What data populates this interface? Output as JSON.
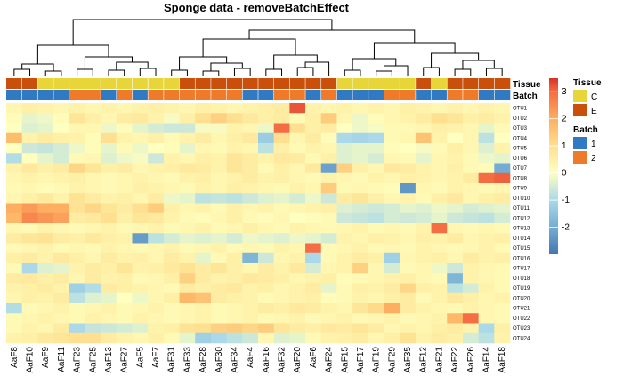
{
  "chart_data": {
    "type": "heatmap",
    "title": "Sponge data - removeBatchEffect",
    "columns": [
      "AaF8",
      "AaF10",
      "AaF9",
      "AaF11",
      "AaF23",
      "AaF25",
      "AaF13",
      "AaF27",
      "AaF5",
      "AaF7",
      "AaF31",
      "AaF33",
      "AaF28",
      "AaF30",
      "AaF34",
      "AaF4",
      "AaF16",
      "AaF32",
      "AaF20",
      "AaF6",
      "AaF24",
      "AaF15",
      "AaF17",
      "AaF19",
      "AaF29",
      "AaF35",
      "AaF12",
      "AaF21",
      "AaF22",
      "AaF26",
      "AaF14",
      "AaF18"
    ],
    "rows": [
      "OTU1",
      "OTU2",
      "OTU3",
      "OTU4",
      "OTU5",
      "OTU6",
      "OTU7",
      "OTU8",
      "OTU9",
      "OTU10",
      "OTU11",
      "OTU12",
      "OTU13",
      "OTU14",
      "OTU15",
      "OTU16",
      "OTU17",
      "OTU18",
      "OTU19",
      "OTU20",
      "OTU21",
      "OTU22",
      "OTU23",
      "OTU24"
    ],
    "annotations": {
      "Tissue": {
        "label": "Tissue",
        "levels": [
          "C",
          "E"
        ],
        "colors": {
          "C": "#e8d53a",
          "E": "#c94f0b"
        },
        "values": [
          "E",
          "E",
          "C",
          "C",
          "C",
          "C",
          "C",
          "C",
          "C",
          "C",
          "C",
          "E",
          "E",
          "E",
          "E",
          "E",
          "E",
          "E",
          "E",
          "E",
          "E",
          "C",
          "C",
          "C",
          "C",
          "C",
          "E",
          "C",
          "E",
          "E",
          "E",
          "E"
        ]
      },
      "Batch": {
        "label": "Batch",
        "levels": [
          "1",
          "2"
        ],
        "colors": {
          "1": "#2f7ac2",
          "2": "#ef7a2a"
        },
        "values": [
          "1",
          "1",
          "1",
          "1",
          "2",
          "2",
          "1",
          "2",
          "1",
          "2",
          "2",
          "2",
          "2",
          "2",
          "2",
          "1",
          "1",
          "2",
          "2",
          "1",
          "2",
          "1",
          "1",
          "1",
          "2",
          "2",
          "1",
          "1",
          "2",
          "2",
          "1",
          "1"
        ]
      }
    },
    "legend": {
      "ticks": [
        3,
        2,
        1,
        0,
        -1,
        -2
      ],
      "range": [
        -3,
        3.5
      ]
    },
    "values": [
      [
        0.3,
        0.5,
        0.4,
        0.3,
        0.4,
        0.3,
        0.4,
        0.3,
        0.4,
        0.5,
        0.4,
        0.3,
        0.5,
        0.4,
        0.3,
        0.4,
        0.5,
        0.6,
        3.2,
        0.4,
        0.3,
        0.4,
        0.3,
        0.4,
        0.3,
        0.5,
        0.4,
        0.3,
        0.4,
        0.3,
        0.4,
        0.3
      ],
      [
        0.1,
        -0.3,
        -0.2,
        0.1,
        0.8,
        0.5,
        0.3,
        0.6,
        0.7,
        0.4,
        -0.1,
        0.5,
        1.0,
        1.3,
        1.0,
        0.7,
        0.5,
        0.6,
        0.2,
        0.5,
        1.4,
        0.3,
        -0.2,
        0.1,
        0.3,
        0.4,
        0.6,
        1.0,
        0.8,
        0.5,
        0.6,
        0.4
      ],
      [
        0.0,
        -0.4,
        -0.3,
        0.0,
        0.3,
        0.3,
        -0.2,
        0.1,
        -0.3,
        -0.5,
        -0.6,
        -0.6,
        -0.1,
        -0.1,
        0.4,
        0.3,
        -0.2,
        3.0,
        1.0,
        0.5,
        0.6,
        0.0,
        -0.2,
        -0.1,
        0.2,
        0.2,
        0.3,
        0.5,
        0.4,
        0.3,
        -0.3,
        0.2
      ],
      [
        1.7,
        0.4,
        0.6,
        0.5,
        0.4,
        0.1,
        1.0,
        0.4,
        0.3,
        0.5,
        0.2,
        0.4,
        0.6,
        0.3,
        0.5,
        0.7,
        -1.3,
        1.0,
        0.3,
        0.6,
        0.1,
        -1.0,
        -1.1,
        -1.0,
        0.2,
        0.3,
        1.6,
        0.4,
        0.0,
        0.3,
        -0.8,
        0.0
      ],
      [
        0.0,
        -0.6,
        -0.7,
        -0.5,
        -0.2,
        0.1,
        -0.3,
        0.2,
        -0.2,
        0.0,
        0.1,
        -0.3,
        0.3,
        0.2,
        0.4,
        0.3,
        -0.8,
        0.5,
        0.2,
        0.4,
        0.3,
        -0.4,
        -0.3,
        -0.3,
        0.1,
        0.0,
        -0.1,
        0.2,
        0.5,
        0.3,
        -0.4,
        0.4
      ],
      [
        -0.9,
        0.0,
        -0.3,
        -0.5,
        0.2,
        0.3,
        -0.4,
        -0.2,
        -0.1,
        -0.6,
        0.4,
        0.3,
        0.5,
        0.4,
        0.8,
        0.6,
        0.4,
        0.7,
        0.6,
        0.2,
        0.5,
        -0.4,
        -0.3,
        -0.5,
        0.3,
        0.2,
        -0.3,
        0.3,
        0.4,
        0.2,
        -0.2,
        -0.3
      ],
      [
        0.4,
        0.7,
        0.5,
        0.6,
        1.2,
        0.8,
        0.5,
        0.6,
        0.3,
        0.4,
        0.5,
        0.7,
        0.6,
        0.4,
        0.8,
        0.6,
        0.2,
        0.5,
        0.3,
        0.7,
        -2.2,
        1.3,
        0.5,
        0.3,
        0.7,
        0.6,
        0.4,
        0.3,
        0.5,
        0.2,
        0.1,
        -2.0
      ],
      [
        0.3,
        0.4,
        0.3,
        0.4,
        0.5,
        0.3,
        0.2,
        0.3,
        0.4,
        0.3,
        0.2,
        0.4,
        0.5,
        0.3,
        0.4,
        0.6,
        0.4,
        0.5,
        0.3,
        0.2,
        0.4,
        0.3,
        0.2,
        0.4,
        0.3,
        0.5,
        0.4,
        0.3,
        0.4,
        0.6,
        3.0,
        3.1
      ],
      [
        0.2,
        0.3,
        0.1,
        0.2,
        0.4,
        0.3,
        0.2,
        0.3,
        0.5,
        0.4,
        0.3,
        0.2,
        0.4,
        0.3,
        0.5,
        0.4,
        0.3,
        0.2,
        0.4,
        0.3,
        1.4,
        0.2,
        0.3,
        0.2,
        0.1,
        -2.4,
        0.3,
        0.2,
        0.4,
        0.3,
        0.2,
        0.3
      ],
      [
        0.3,
        0.5,
        0.7,
        0.4,
        0.9,
        0.6,
        0.4,
        0.5,
        0.3,
        0.6,
        -0.2,
        -0.3,
        -0.8,
        -0.7,
        -0.8,
        -0.6,
        -0.4,
        -0.3,
        -0.5,
        -0.2,
        -0.6,
        0.6,
        0.8,
        0.5,
        0.3,
        0.4,
        0.2,
        0.5,
        0.7,
        0.3,
        0.5,
        0.6
      ],
      [
        2.0,
        2.3,
        2.0,
        2.0,
        0.9,
        1.2,
        0.8,
        0.6,
        1.0,
        1.4,
        0.5,
        0.3,
        0.4,
        0.2,
        0.5,
        0.3,
        0.4,
        0.2,
        0.3,
        0.4,
        0.5,
        -0.4,
        -0.5,
        -0.6,
        -0.5,
        -0.3,
        -0.4,
        -0.2,
        -0.3,
        -0.5,
        -0.4,
        -0.3
      ],
      [
        1.8,
        2.6,
        2.4,
        2.2,
        0.6,
        0.7,
        1.0,
        0.5,
        0.8,
        0.7,
        0.4,
        0.2,
        0.1,
        0.3,
        0.5,
        0.2,
        0.1,
        0.3,
        0.0,
        0.1,
        0.2,
        -0.6,
        -0.7,
        -0.8,
        -0.5,
        -0.6,
        -0.5,
        -0.3,
        -0.6,
        -0.7,
        -0.8,
        -0.5
      ],
      [
        0.3,
        0.2,
        0.4,
        0.3,
        0.2,
        0.3,
        0.4,
        0.2,
        0.3,
        0.4,
        0.2,
        0.3,
        0.4,
        0.2,
        0.3,
        0.5,
        0.3,
        0.2,
        0.4,
        0.3,
        0.2,
        0.3,
        0.4,
        0.2,
        0.3,
        0.2,
        0.4,
        3.0,
        0.3,
        0.2,
        0.3,
        0.2
      ],
      [
        0.6,
        0.8,
        0.9,
        0.6,
        0.5,
        0.7,
        0.5,
        0.4,
        -2.3,
        -0.8,
        -0.5,
        -0.3,
        -0.4,
        -0.3,
        -0.5,
        -0.2,
        -0.3,
        -0.4,
        -0.2,
        -0.3,
        -0.5,
        0.4,
        0.3,
        0.5,
        0.4,
        0.3,
        0.5,
        0.4,
        0.6,
        0.3,
        0.4,
        0.5
      ],
      [
        0.2,
        0.3,
        0.4,
        0.2,
        0.3,
        0.2,
        0.4,
        0.3,
        0.2,
        0.3,
        0.4,
        0.2,
        0.3,
        0.4,
        0.2,
        0.3,
        0.2,
        0.4,
        0.3,
        3.0,
        0.2,
        0.3,
        0.4,
        0.2,
        0.3,
        0.2,
        0.4,
        0.3,
        0.2,
        0.3,
        0.4,
        0.2
      ],
      [
        0.5,
        0.6,
        0.4,
        0.7,
        0.5,
        0.3,
        0.6,
        0.4,
        0.5,
        0.3,
        0.6,
        0.4,
        -0.3,
        0.2,
        0.5,
        -1.8,
        -0.6,
        0.3,
        0.4,
        -1.0,
        0.2,
        0.4,
        0.6,
        0.5,
        -1.2,
        0.3,
        0.4,
        0.5,
        0.3,
        0.6,
        0.4,
        0.5
      ],
      [
        0.2,
        -1.0,
        -0.4,
        -0.3,
        0.4,
        0.6,
        0.5,
        0.8,
        0.4,
        0.5,
        0.7,
        0.9,
        0.6,
        0.8,
        0.5,
        0.3,
        0.6,
        0.4,
        0.7,
        -0.5,
        0.3,
        0.4,
        1.3,
        0.3,
        -0.5,
        0.2,
        0.3,
        -0.2,
        -0.6,
        0.4,
        0.3,
        0.2
      ],
      [
        0.6,
        0.7,
        0.5,
        0.6,
        0.3,
        0.6,
        0.4,
        0.5,
        0.2,
        0.3,
        0.5,
        1.3,
        0.6,
        0.4,
        0.5,
        0.7,
        0.6,
        0.5,
        0.3,
        0.4,
        0.5,
        0.1,
        0.2,
        0.3,
        0.4,
        0.5,
        0.3,
        0.2,
        -1.8,
        0.4,
        0.3,
        0.2
      ],
      [
        0.4,
        0.5,
        0.6,
        0.4,
        -1.2,
        -0.9,
        0.6,
        0.5,
        0.4,
        0.3,
        0.2,
        0.6,
        0.5,
        0.6,
        0.7,
        0.4,
        0.5,
        0.3,
        0.4,
        0.6,
        -0.3,
        0.2,
        0.5,
        0.4,
        0.6,
        1.2,
        0.5,
        0.4,
        -0.8,
        -0.5,
        0.4,
        0.2
      ],
      [
        0.3,
        0.5,
        0.4,
        0.6,
        -0.8,
        -0.4,
        -0.3,
        0.0,
        -0.2,
        0.3,
        0.5,
        1.8,
        1.6,
        0.6,
        0.5,
        0.4,
        0.2,
        0.3,
        0.4,
        0.5,
        0.1,
        0.2,
        0.4,
        0.3,
        0.5,
        0.6,
        0.2,
        0.4,
        0.7,
        0.5,
        0.3,
        0.4
      ],
      [
        -0.9,
        0.2,
        0.3,
        0.4,
        0.2,
        0.3,
        0.4,
        0.2,
        0.3,
        0.4,
        0.2,
        0.3,
        0.4,
        0.2,
        0.3,
        0.4,
        0.6,
        0.5,
        0.7,
        0.6,
        0.4,
        0.3,
        0.8,
        1.1,
        2.0,
        0.6,
        0.4,
        0.3,
        0.2,
        0.4,
        0.3,
        0.2
      ],
      [
        0.2,
        0.3,
        0.4,
        0.3,
        0.2,
        0.4,
        0.3,
        0.2,
        0.4,
        0.3,
        0.2,
        0.3,
        0.4,
        0.2,
        0.3,
        0.4,
        0.2,
        0.3,
        0.4,
        0.2,
        0.3,
        0.4,
        0.2,
        0.3,
        0.4,
        0.2,
        0.3,
        0.4,
        1.8,
        3.0,
        0.3,
        0.2
      ],
      [
        0.2,
        0.4,
        0.3,
        0.6,
        -1.0,
        -0.7,
        -0.6,
        -0.5,
        -0.4,
        0.4,
        0.5,
        0.9,
        1.0,
        1.3,
        1.4,
        1.2,
        1.4,
        0.8,
        0.6,
        0.5,
        0.7,
        0.6,
        0.8,
        0.6,
        0.3,
        0.4,
        0.3,
        0.5,
        0.6,
        0.4,
        -1.0,
        0.5
      ],
      [
        0.4,
        0.5,
        0.7,
        0.8,
        1.0,
        1.0,
        0.6,
        0.4,
        0.3,
        0.5,
        0.2,
        -0.3,
        -1.2,
        -1.0,
        -0.8,
        -0.6,
        0.3,
        -0.4,
        -0.3,
        0.2,
        0.4,
        0.5,
        0.6,
        0.3,
        0.5,
        0.9,
        0.4,
        0.6,
        0.5,
        -0.5,
        -0.8,
        0.4
      ]
    ]
  }
}
